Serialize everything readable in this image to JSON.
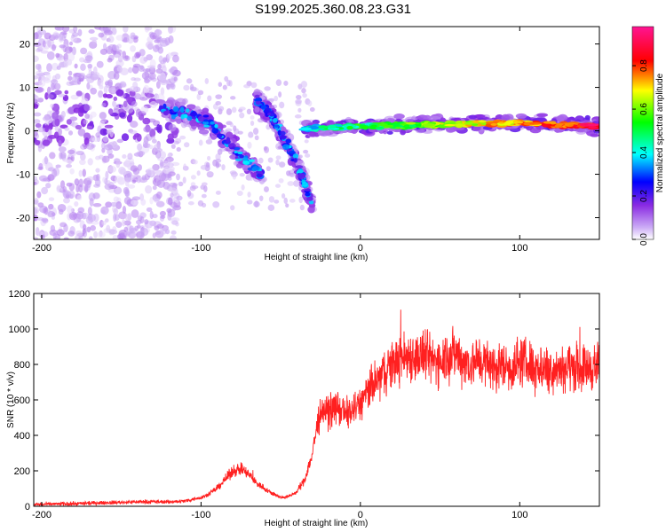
{
  "title": "S199.2025.360.08.23.G31",
  "chart_data": [
    {
      "type": "heatmap",
      "name": "spectrogram",
      "xlabel": "Height of straight line (km)",
      "ylabel": "Frequency (Hz)",
      "xlim": [
        -205,
        150
      ],
      "ylim": [
        -25,
        24
      ],
      "x_ticks": [
        -200,
        -100,
        0,
        100
      ],
      "y_ticks": [
        20,
        10,
        0,
        -10,
        -20
      ],
      "colorbar": {
        "label": "Normalized spectral amplitude",
        "range": [
          0,
          0.98
        ],
        "ticks": [
          0.0,
          0.2,
          0.4,
          0.6,
          0.8
        ],
        "tick_labels": [
          "0.0",
          "0.2",
          "0.4",
          "0.6",
          "0.8"
        ],
        "colormap": [
          "#ffffff",
          "#8a2be2",
          "#0000ff",
          "#00ffff",
          "#00ff00",
          "#ffff00",
          "#ff0000",
          "#ff1493"
        ]
      },
      "features": [
        {
          "description": "noise",
          "x_range": [
            -205,
            -115
          ],
          "freq_range": [
            -25,
            24
          ],
          "amplitude": 0.15
        },
        {
          "description": "descending track",
          "points": [
            [
              -125,
              5
            ],
            [
              -110,
              4
            ],
            [
              -95,
              2
            ],
            [
              -85,
              -2
            ],
            [
              -75,
              -6
            ],
            [
              -62,
              -10
            ]
          ],
          "amplitude": 0.35
        },
        {
          "description": "second track",
          "points": [
            [
              -65,
              7
            ],
            [
              -55,
              3
            ],
            [
              -48,
              -2
            ],
            [
              -40,
              -7
            ],
            [
              -30,
              -17
            ]
          ],
          "amplitude": 0.3
        },
        {
          "description": "carrier line",
          "points": [
            [
              -35,
              0.5
            ],
            [
              0,
              1
            ],
            [
              50,
              1.5
            ],
            [
              100,
              1.8
            ],
            [
              150,
              1
            ]
          ],
          "amplitude": 0.9
        }
      ]
    },
    {
      "type": "line",
      "name": "snr",
      "xlabel": "Height of straight line (km)",
      "ylabel": "SNR (10 * v/v)",
      "xlim": [
        -205,
        150
      ],
      "ylim": [
        0,
        1200
      ],
      "x_ticks": [
        -200,
        -100,
        0,
        100
      ],
      "y_ticks": [
        0,
        200,
        400,
        600,
        800,
        1000,
        1200
      ],
      "series": [
        {
          "name": "SNR",
          "color": "#ff2020",
          "x": [
            -205,
            -180,
            -160,
            -140,
            -120,
            -110,
            -100,
            -95,
            -90,
            -85,
            -80,
            -75,
            -70,
            -65,
            -60,
            -55,
            -50,
            -45,
            -40,
            -35,
            -30,
            -28,
            -25,
            -20,
            -15,
            -10,
            -5,
            0,
            5,
            10,
            15,
            20,
            25,
            30,
            35,
            40,
            45,
            50,
            55,
            60,
            65,
            70,
            75,
            80,
            85,
            90,
            95,
            100,
            110,
            120,
            130,
            140,
            150
          ],
          "y": [
            10,
            15,
            20,
            25,
            25,
            30,
            50,
            70,
            100,
            150,
            200,
            210,
            180,
            130,
            100,
            70,
            50,
            55,
            80,
            150,
            300,
            420,
            520,
            540,
            560,
            520,
            540,
            580,
            650,
            700,
            760,
            800,
            830,
            850,
            840,
            850,
            820,
            830,
            860,
            860,
            820,
            800,
            830,
            800,
            780,
            800,
            780,
            820,
            790,
            780,
            790,
            780,
            790
          ]
        }
      ]
    }
  ]
}
